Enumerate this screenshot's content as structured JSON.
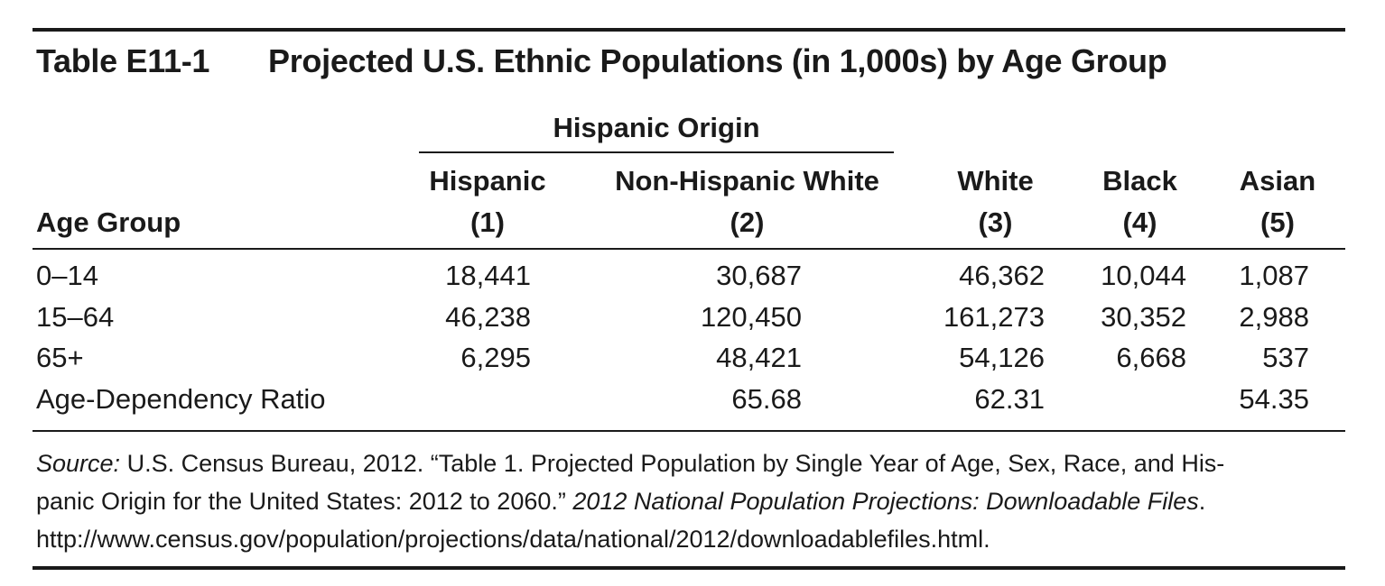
{
  "table": {
    "number": "Table E11-1",
    "title": "Projected U.S. Ethnic Populations (in 1,000s) by Age Group",
    "group_header": "Hispanic Origin",
    "row_header": "Age Group",
    "columns": [
      {
        "name": "Hispanic",
        "num": "(1)"
      },
      {
        "name": "Non-Hispanic White",
        "num": "(2)"
      },
      {
        "name": "White",
        "num": "(3)"
      },
      {
        "name": "Black",
        "num": "(4)"
      },
      {
        "name": "Asian",
        "num": "(5)"
      }
    ],
    "rows": [
      {
        "label": "0–14",
        "values": [
          "18,441",
          "30,687",
          "46,362",
          "10,044",
          "1,087"
        ]
      },
      {
        "label": "15–64",
        "values": [
          "46,238",
          "120,450",
          "161,273",
          "30,352",
          "2,988"
        ]
      },
      {
        "label": "65+",
        "values": [
          "6,295",
          "48,421",
          "54,126",
          "6,668",
          "537"
        ]
      },
      {
        "label": "Age-Dependency Ratio",
        "values": [
          "",
          "65.68",
          "62.31",
          "",
          "54.35"
        ]
      }
    ]
  },
  "source": {
    "label": "Source:",
    "line1": " U.S. Census Bureau, 2012. “Table 1. Projected Population by Single Year of Age, Sex, Race, and His-",
    "line2a": "panic Origin for the United States: 2012 to 2060.” ",
    "line2b": "2012 National Population Projections: Downloadable Files",
    "line2c": ".",
    "line3": "http://www.census.gov/population/projections/data/national/2012/downloadablefiles.html."
  }
}
